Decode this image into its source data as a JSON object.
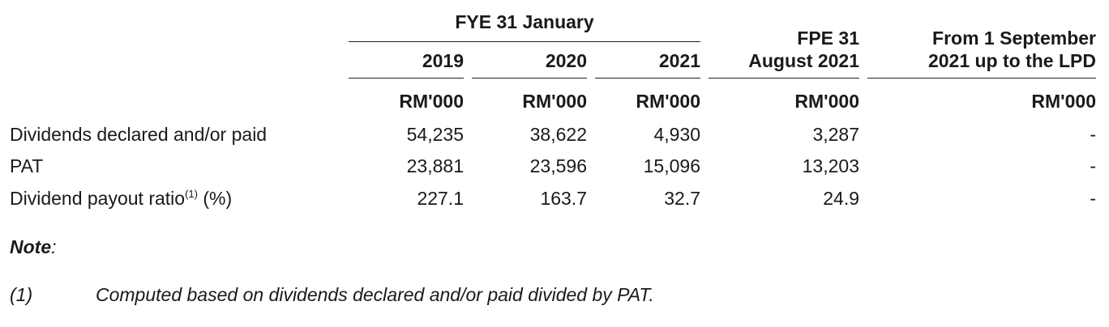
{
  "table": {
    "group_header": "FYE 31 January",
    "fpe_header_line1": "FPE 31",
    "fpe_header_line2": "August 2021",
    "lpd_header_line1": "From 1 September",
    "lpd_header_line2": "2021 up to the LPD",
    "years": [
      "2019",
      "2020",
      "2021"
    ],
    "unit": "RM'000",
    "rows": [
      {
        "label": "Dividends declared and/or paid",
        "values": [
          "54,235",
          "38,622",
          "4,930",
          "3,287",
          "-"
        ]
      },
      {
        "label": "PAT",
        "values": [
          "23,881",
          "23,596",
          "15,096",
          "13,203",
          "-"
        ]
      },
      {
        "label_main": "Dividend payout ratio",
        "label_sup": "(1)",
        "label_suffix": " (%)",
        "values": [
          "227.1",
          "163.7",
          "32.7",
          "24.9",
          "-"
        ]
      }
    ]
  },
  "note": {
    "title": "Note",
    "colon": ":",
    "marker": "(1)",
    "text": "Computed based on dividends declared and/or paid divided by PAT."
  }
}
